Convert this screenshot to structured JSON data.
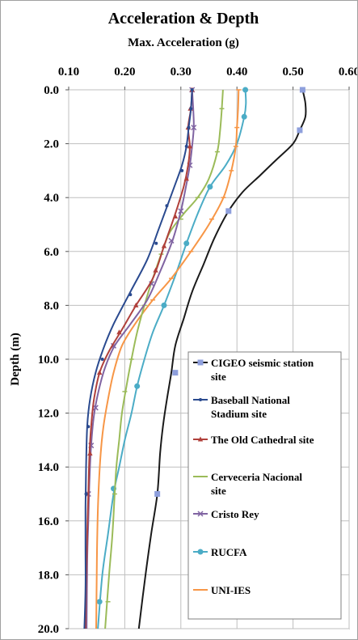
{
  "chart_data": {
    "type": "line",
    "title": "Acceleration & Depth",
    "xlabel": "Max. Acceleration (g)",
    "ylabel": "Depth (m)",
    "x_axis_position": "top",
    "y_axis_inverted": true,
    "xlim": [
      0.1,
      0.6
    ],
    "ylim": [
      0.0,
      20.0
    ],
    "x_ticks": [
      "0.10",
      "0.20",
      "0.30",
      "0.40",
      "0.50",
      "0.60"
    ],
    "y_ticks": [
      "0.0",
      "2.0",
      "4.0",
      "6.0",
      "8.0",
      "10.0",
      "12.0",
      "14.0",
      "16.0",
      "18.0",
      "20.0"
    ],
    "grid": true,
    "legend_placement": "bottom-right inside plot",
    "series": [
      {
        "name": "CIGEO seismic station site",
        "color": "#1a1a1a",
        "marker_color": "#8e9fdc",
        "marker": "square",
        "points": [
          [
            0.517,
            0.0
          ],
          [
            0.522,
            0.5
          ],
          [
            0.522,
            1.0
          ],
          [
            0.512,
            1.5
          ],
          [
            0.5,
            2.0
          ],
          [
            0.47,
            2.6
          ],
          [
            0.44,
            3.2
          ],
          [
            0.41,
            3.8
          ],
          [
            0.385,
            4.5
          ],
          [
            0.36,
            5.5
          ],
          [
            0.34,
            6.5
          ],
          [
            0.32,
            7.5
          ],
          [
            0.305,
            8.5
          ],
          [
            0.29,
            9.5
          ],
          [
            0.283,
            10.5
          ],
          [
            0.275,
            11.5
          ],
          [
            0.268,
            12.5
          ],
          [
            0.263,
            13.5
          ],
          [
            0.258,
            15.0
          ],
          [
            0.247,
            16.5
          ],
          [
            0.237,
            18.0
          ],
          [
            0.225,
            20.0
          ]
        ],
        "marker_points": [
          [
            0.517,
            0.0
          ],
          [
            0.512,
            1.5
          ],
          [
            0.385,
            4.5
          ],
          [
            0.29,
            10.5
          ],
          [
            0.258,
            15.0
          ]
        ]
      },
      {
        "name": "Baseball National Stadium site",
        "color": "#2a4a8f",
        "marker_color": "#2a4a8f",
        "marker": "dot",
        "points": [
          [
            0.32,
            0.0
          ],
          [
            0.318,
            0.7
          ],
          [
            0.314,
            1.4
          ],
          [
            0.31,
            2.1
          ],
          [
            0.302,
            2.8
          ],
          [
            0.29,
            3.5
          ],
          [
            0.276,
            4.3
          ],
          [
            0.26,
            5.2
          ],
          [
            0.24,
            6.3
          ],
          [
            0.21,
            7.5
          ],
          [
            0.18,
            8.7
          ],
          [
            0.162,
            9.6
          ],
          [
            0.148,
            10.5
          ],
          [
            0.138,
            11.5
          ],
          [
            0.133,
            12.5
          ],
          [
            0.131,
            14.0
          ],
          [
            0.13,
            15.5
          ],
          [
            0.13,
            17.0
          ],
          [
            0.13,
            18.5
          ],
          [
            0.128,
            20.0
          ]
        ],
        "marker_points": [
          [
            0.32,
            0.0
          ],
          [
            0.318,
            0.7
          ],
          [
            0.314,
            1.4
          ],
          [
            0.31,
            2.1
          ],
          [
            0.302,
            3.0
          ],
          [
            0.275,
            4.3
          ],
          [
            0.256,
            5.7
          ],
          [
            0.21,
            7.6
          ],
          [
            0.16,
            10.0
          ],
          [
            0.135,
            12.5
          ],
          [
            0.131,
            15.0
          ]
        ]
      },
      {
        "name": "The Old Cathedral site",
        "color": "#b0403b",
        "marker_color": "#b0403b",
        "marker": "triangle",
        "points": [
          [
            0.32,
            0.0
          ],
          [
            0.318,
            0.7
          ],
          [
            0.313,
            1.4
          ],
          [
            0.316,
            2.1
          ],
          [
            0.313,
            2.8
          ],
          [
            0.305,
            3.6
          ],
          [
            0.29,
            4.6
          ],
          [
            0.27,
            5.8
          ],
          [
            0.25,
            7.0
          ],
          [
            0.22,
            8.0
          ],
          [
            0.195,
            8.9
          ],
          [
            0.172,
            9.7
          ],
          [
            0.155,
            10.5
          ],
          [
            0.145,
            11.5
          ],
          [
            0.14,
            12.5
          ],
          [
            0.137,
            13.5
          ],
          [
            0.135,
            15.0
          ],
          [
            0.133,
            16.5
          ],
          [
            0.131,
            18.5
          ],
          [
            0.13,
            20.0
          ]
        ],
        "marker_points": [
          [
            0.32,
            0.0
          ],
          [
            0.317,
            0.7
          ],
          [
            0.313,
            1.4
          ],
          [
            0.316,
            2.1
          ],
          [
            0.31,
            3.3
          ],
          [
            0.29,
            4.7
          ],
          [
            0.27,
            5.8
          ],
          [
            0.255,
            6.7
          ],
          [
            0.22,
            8.0
          ],
          [
            0.19,
            9.0
          ],
          [
            0.155,
            10.5
          ],
          [
            0.138,
            13.5
          ]
        ]
      },
      {
        "name": "Cerveceria Nacional site",
        "color": "#9bbb59",
        "marker_color": "#9bbb59",
        "marker": "dash",
        "points": [
          [
            0.375,
            0.0
          ],
          [
            0.373,
            0.7
          ],
          [
            0.37,
            1.5
          ],
          [
            0.365,
            2.3
          ],
          [
            0.35,
            3.3
          ],
          [
            0.33,
            4.0
          ],
          [
            0.305,
            4.6
          ],
          [
            0.28,
            5.3
          ],
          [
            0.265,
            6.1
          ],
          [
            0.25,
            7.0
          ],
          [
            0.235,
            8.0
          ],
          [
            0.222,
            9.0
          ],
          [
            0.212,
            10.0
          ],
          [
            0.203,
            11.0
          ],
          [
            0.195,
            12.0
          ],
          [
            0.19,
            13.0
          ],
          [
            0.185,
            14.0
          ],
          [
            0.182,
            15.0
          ],
          [
            0.178,
            16.5
          ],
          [
            0.172,
            18.0
          ],
          [
            0.165,
            20.0
          ]
        ],
        "marker_points": [
          [
            0.373,
            0.7
          ],
          [
            0.365,
            2.3
          ],
          [
            0.33,
            4.0
          ],
          [
            0.3,
            4.8
          ],
          [
            0.265,
            6.1
          ],
          [
            0.235,
            8.0
          ],
          [
            0.212,
            10.0
          ],
          [
            0.2,
            11.2
          ],
          [
            0.182,
            15.0
          ],
          [
            0.17,
            19.0
          ]
        ]
      },
      {
        "name": "Cristo Rey",
        "color": "#8064a2",
        "marker_color": "#8064a2",
        "marker": "cross",
        "points": [
          [
            0.32,
            0.0
          ],
          [
            0.322,
            0.7
          ],
          [
            0.323,
            1.4
          ],
          [
            0.32,
            2.1
          ],
          [
            0.316,
            2.8
          ],
          [
            0.31,
            3.5
          ],
          [
            0.3,
            4.5
          ],
          [
            0.285,
            5.6
          ],
          [
            0.262,
            6.8
          ],
          [
            0.24,
            7.8
          ],
          [
            0.21,
            8.7
          ],
          [
            0.182,
            9.5
          ],
          [
            0.165,
            10.3
          ],
          [
            0.153,
            11.2
          ],
          [
            0.145,
            12.1
          ],
          [
            0.14,
            13.2
          ],
          [
            0.137,
            14.5
          ],
          [
            0.135,
            16.0
          ],
          [
            0.133,
            17.5
          ],
          [
            0.132,
            20.0
          ]
        ],
        "marker_points": [
          [
            0.32,
            0.0
          ],
          [
            0.323,
            1.4
          ],
          [
            0.316,
            2.8
          ],
          [
            0.3,
            4.5
          ],
          [
            0.283,
            5.6
          ],
          [
            0.248,
            7.2
          ],
          [
            0.18,
            9.5
          ],
          [
            0.148,
            11.8
          ],
          [
            0.14,
            13.2
          ],
          [
            0.135,
            15.0
          ]
        ]
      },
      {
        "name": "RUCFA",
        "color": "#4bacc6",
        "marker_color": "#4bacc6",
        "marker": "circle",
        "points": [
          [
            0.415,
            0.0
          ],
          [
            0.416,
            0.5
          ],
          [
            0.413,
            1.0
          ],
          [
            0.4,
            2.0
          ],
          [
            0.38,
            2.8
          ],
          [
            0.352,
            3.6
          ],
          [
            0.33,
            4.6
          ],
          [
            0.31,
            5.7
          ],
          [
            0.29,
            6.9
          ],
          [
            0.27,
            8.0
          ],
          [
            0.25,
            9.0
          ],
          [
            0.235,
            10.0
          ],
          [
            0.222,
            11.0
          ],
          [
            0.212,
            12.0
          ],
          [
            0.2,
            13.0
          ],
          [
            0.19,
            14.0
          ],
          [
            0.18,
            15.0
          ],
          [
            0.17,
            16.5
          ],
          [
            0.16,
            18.0
          ],
          [
            0.152,
            20.0
          ]
        ],
        "marker_points": [
          [
            0.415,
            0.0
          ],
          [
            0.413,
            1.0
          ],
          [
            0.352,
            3.6
          ],
          [
            0.31,
            5.7
          ],
          [
            0.27,
            8.0
          ],
          [
            0.222,
            11.0
          ],
          [
            0.18,
            14.8
          ],
          [
            0.155,
            19.0
          ]
        ]
      },
      {
        "name": "UNI-IES",
        "color": "#f79646",
        "marker_color": "#f79646",
        "marker": "dash",
        "points": [
          [
            0.403,
            0.0
          ],
          [
            0.402,
            0.7
          ],
          [
            0.4,
            1.4
          ],
          [
            0.398,
            2.1
          ],
          [
            0.39,
            3.0
          ],
          [
            0.376,
            4.0
          ],
          [
            0.35,
            5.0
          ],
          [
            0.318,
            6.0
          ],
          [
            0.283,
            7.0
          ],
          [
            0.25,
            7.8
          ],
          [
            0.218,
            8.7
          ],
          [
            0.195,
            9.5
          ],
          [
            0.18,
            10.5
          ],
          [
            0.17,
            11.5
          ],
          [
            0.162,
            12.5
          ],
          [
            0.157,
            13.5
          ],
          [
            0.153,
            15.0
          ],
          [
            0.151,
            16.5
          ],
          [
            0.15,
            18.0
          ],
          [
            0.149,
            20.0
          ]
        ],
        "marker_points": [
          [
            0.403,
            0.0
          ],
          [
            0.4,
            1.4
          ],
          [
            0.398,
            2.1
          ],
          [
            0.39,
            3.0
          ],
          [
            0.376,
            4.0
          ],
          [
            0.355,
            4.8
          ],
          [
            0.318,
            6.0
          ],
          [
            0.283,
            7.0
          ],
          [
            0.25,
            7.8
          ]
        ]
      }
    ]
  }
}
